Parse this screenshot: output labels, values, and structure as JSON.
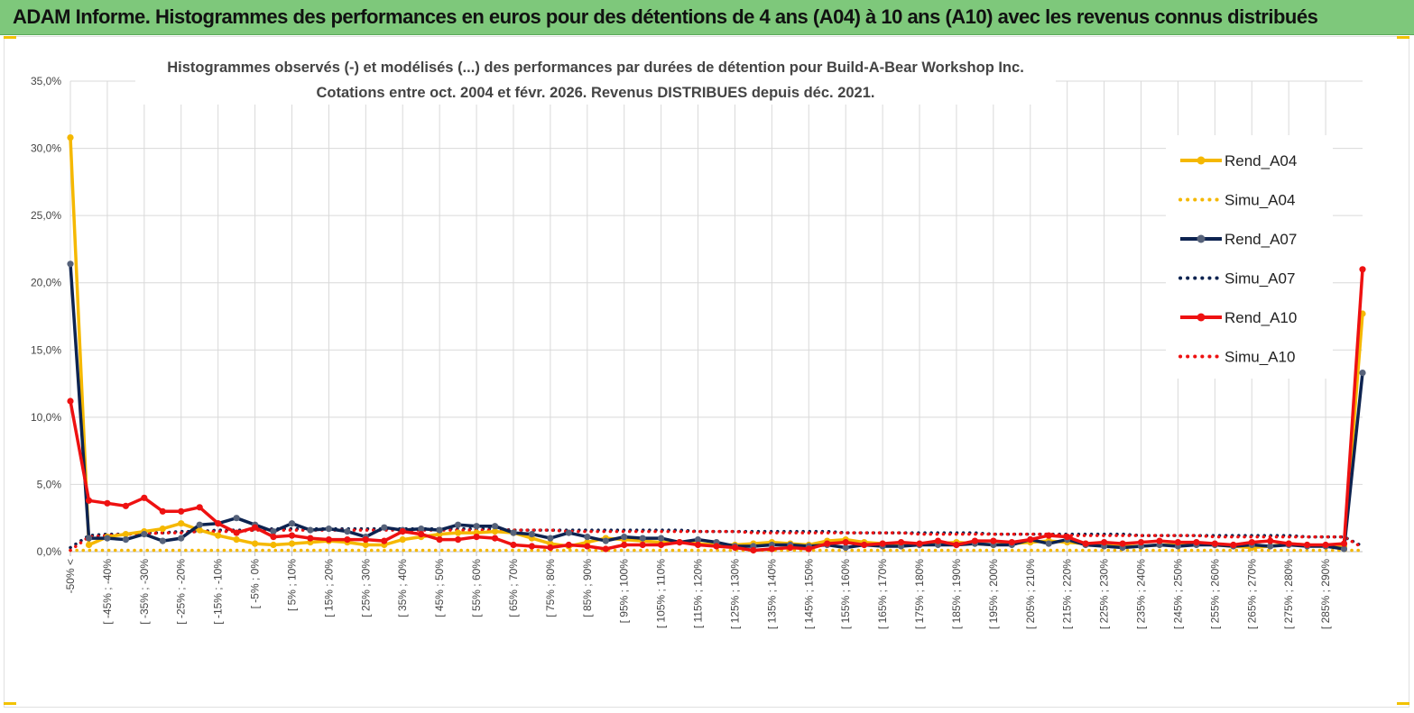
{
  "banner": {
    "title": "ADAM Informe. Histogrammes des performances en euros pour des détentions de 4 ans (A04) à 10 ans (A10) avec les revenus connus distribués"
  },
  "chart_data": {
    "type": "line",
    "title": "Histogrammes observés (-) et modélisés (...) des performances par durées de détention pour Build-A-Bear Workshop Inc.",
    "subtitle": "Cotations entre oct. 2004 et févr. 2026. Revenus DISTRIBUES depuis déc. 2021.",
    "xlabel": "",
    "ylabel": "",
    "ylim": [
      0,
      35
    ],
    "yticks": [
      "0,0%",
      "5,0%",
      "10,0%",
      "15,0%",
      "20,0%",
      "25,0%",
      "30,0%",
      "35,0%"
    ],
    "grid": true,
    "legend_position": "right",
    "categories": [
      "-50% <",
      "[ -50% ; -45%",
      "[ -45% ; -40%",
      "[ -40% ; -35%",
      "[ -35% ; -30%",
      "[ -30% ; -25%",
      "[ -25% ; -20%",
      "[ -20% ; -15%",
      "[ -15% ; -10%",
      "[ -10% ; -5%",
      "[ -5% ; 0%",
      "[ 0% ; 5%",
      "[ 5% ; 10%",
      "[ 10% ; 15%",
      "[ 15% ; 20%",
      "[ 20% ; 25%",
      "[ 25% ; 30%",
      "[ 30% ; 35%",
      "[ 35% ; 40%",
      "[ 40% ; 45%",
      "[ 45% ; 50%",
      "[ 50% ; 55%",
      "[ 55% ; 60%",
      "[ 60% ; 65%",
      "[ 65% ; 70%",
      "[ 70% ; 75%",
      "[ 75% ; 80%",
      "[ 80% ; 85%",
      "[ 85% ; 90%",
      "[ 90% ; 95%",
      "[ 95% ; 100%",
      "[ 100% ; 105%",
      "[ 105% ; 110%",
      "[ 110% ; 115%",
      "[ 115% ; 120%",
      "[ 120% ; 125%",
      "[ 125% ; 130%",
      "[ 130% ; 135%",
      "[ 135% ; 140%",
      "[ 140% ; 145%",
      "[ 145% ; 150%",
      "[ 150% ; 155%",
      "[ 155% ; 160%",
      "[ 160% ; 165%",
      "[ 165% ; 170%",
      "[ 170% ; 175%",
      "[ 175% ; 180%",
      "[ 180% ; 185%",
      "[ 185% ; 190%",
      "[ 190% ; 195%",
      "[ 195% ; 200%",
      "[ 200% ; 205%",
      "[ 205% ; 210%",
      "[ 210% ; 215%",
      "[ 215% ; 220%",
      "[ 220% ; 225%",
      "[ 225% ; 230%",
      "[ 230% ; 235%",
      "[ 235% ; 240%",
      "[ 240% ; 245%",
      "[ 245% ; 250%",
      "[ 250% ; 255%",
      "[ 255% ; 260%",
      "[ 260% ; 265%",
      "[ 265% ; 270%",
      "[ 270% ; 275%",
      "[ 275% ; 280%",
      "[ 280% ; 285%",
      "[ 285% ; 290%",
      "[ 290% ; 295%",
      "> 295%"
    ],
    "labeled_ticks": [
      "-50% <",
      "[ -45% ; -40%",
      "[ -35% ; -30%",
      "[ -25% ; -20%",
      "[ -15% ; -10%",
      "[ -5% ; 0%",
      "[ 5% ; 10%",
      "[ 15% ; 20%",
      "[ 25% ; 30%",
      "[ 35% ; 40%",
      "[ 45% ; 50%",
      "[ 55% ; 60%",
      "[ 65% ; 70%",
      "[ 75% ; 80%",
      "[ 85% ; 90%",
      "[ 95% ; 100%",
      "[ 105% ; 110%",
      "[ 115% ; 120%",
      "[ 125% ; 130%",
      "[ 135% ; 140%",
      "[ 145% ; 150%",
      "[ 155% ; 160%",
      "[ 165% ; 170%",
      "[ 175% ; 180%",
      "[ 185% ; 190%",
      "[ 195% ; 200%",
      "[ 205% ; 210%",
      "[ 215% ; 220%",
      "[ 225% ; 230%",
      "[ 235% ; 240%",
      "[ 245% ; 250%",
      "[ 255% ; 260%",
      "[ 265% ; 270%",
      "[ 275% ; 280%",
      "[ 285% ; 290%"
    ],
    "series": [
      {
        "name": "Rend_A04",
        "color": "#f5b800",
        "style": "solid",
        "markers": true,
        "values": [
          30.8,
          0.5,
          1.1,
          1.3,
          1.5,
          1.7,
          2.1,
          1.6,
          1.2,
          0.9,
          0.6,
          0.5,
          0.6,
          0.7,
          0.8,
          0.7,
          0.5,
          0.5,
          0.9,
          1.1,
          1.3,
          1.4,
          1.4,
          1.5,
          1.4,
          1.0,
          0.6,
          0.4,
          0.7,
          1.0,
          0.9,
          0.8,
          0.7,
          0.7,
          0.6,
          0.5,
          0.5,
          0.6,
          0.7,
          0.6,
          0.5,
          0.8,
          0.9,
          0.7,
          0.6,
          0.5,
          0.5,
          0.6,
          0.7,
          0.6,
          0.5,
          0.6,
          0.7,
          0.8,
          0.7,
          0.6,
          0.5,
          0.4,
          0.4,
          0.5,
          0.5,
          0.6,
          0.5,
          0.4,
          0.3,
          0.4,
          0.6,
          0.5,
          0.4,
          0.4,
          17.7
        ]
      },
      {
        "name": "Simu_A04",
        "color": "#f5b800",
        "style": "dotted",
        "markers": false,
        "values": [
          0.1,
          0.1,
          0.1,
          0.1,
          0.1,
          0.1,
          0.1,
          0.1,
          0.1,
          0.1,
          0.1,
          0.1,
          0.1,
          0.1,
          0.1,
          0.1,
          0.1,
          0.1,
          0.1,
          0.1,
          0.1,
          0.1,
          0.1,
          0.1,
          0.1,
          0.1,
          0.1,
          0.1,
          0.1,
          0.1,
          0.1,
          0.1,
          0.1,
          0.1,
          0.1,
          0.1,
          0.1,
          0.1,
          0.1,
          0.1,
          0.1,
          0.1,
          0.1,
          0.1,
          0.1,
          0.1,
          0.1,
          0.1,
          0.1,
          0.1,
          0.1,
          0.1,
          0.1,
          0.1,
          0.1,
          0.1,
          0.1,
          0.1,
          0.1,
          0.1,
          0.1,
          0.1,
          0.1,
          0.1,
          0.1,
          0.1,
          0.1,
          0.1,
          0.1,
          0.1,
          0.1
        ]
      },
      {
        "name": "Rend_A07",
        "color": "#0d2350",
        "style": "solid",
        "markers": true,
        "values": [
          21.4,
          1.0,
          1.0,
          0.9,
          1.3,
          0.8,
          1.0,
          2.0,
          2.1,
          2.5,
          2.0,
          1.5,
          2.1,
          1.6,
          1.7,
          1.5,
          1.1,
          1.8,
          1.6,
          1.7,
          1.6,
          2.0,
          1.9,
          1.9,
          1.4,
          1.3,
          1.0,
          1.4,
          1.1,
          0.8,
          1.1,
          1.0,
          1.0,
          0.7,
          0.9,
          0.7,
          0.4,
          0.4,
          0.5,
          0.5,
          0.4,
          0.5,
          0.3,
          0.5,
          0.4,
          0.4,
          0.5,
          0.5,
          0.5,
          0.6,
          0.5,
          0.5,
          0.9,
          0.6,
          0.9,
          0.5,
          0.4,
          0.3,
          0.4,
          0.5,
          0.4,
          0.5,
          0.5,
          0.4,
          0.5,
          0.4,
          0.5,
          0.4,
          0.4,
          0.2,
          13.3
        ]
      },
      {
        "name": "Simu_A07",
        "color": "#0d2350",
        "style": "dotted",
        "markers": false,
        "values": [
          0.3,
          1.2,
          1.3,
          1.3,
          1.4,
          1.4,
          1.5,
          1.5,
          1.6,
          1.6,
          1.6,
          1.7,
          1.7,
          1.7,
          1.7,
          1.7,
          1.7,
          1.7,
          1.7,
          1.7,
          1.7,
          1.7,
          1.7,
          1.7,
          1.6,
          1.6,
          1.6,
          1.6,
          1.6,
          1.6,
          1.6,
          1.6,
          1.6,
          1.6,
          1.5,
          1.5,
          1.5,
          1.5,
          1.5,
          1.5,
          1.5,
          1.5,
          1.4,
          1.4,
          1.4,
          1.4,
          1.4,
          1.4,
          1.4,
          1.4,
          1.3,
          1.3,
          1.3,
          1.3,
          1.3,
          1.3,
          1.3,
          1.3,
          1.2,
          1.2,
          1.2,
          1.2,
          1.2,
          1.2,
          1.2,
          1.2,
          1.2,
          1.1,
          1.1,
          1.1,
          0.4
        ]
      },
      {
        "name": "Rend_A10",
        "color": "#ee1111",
        "style": "solid",
        "markers": true,
        "values": [
          11.2,
          3.8,
          3.6,
          3.4,
          4.0,
          3.0,
          3.0,
          3.3,
          2.1,
          1.4,
          1.8,
          1.1,
          1.2,
          1.0,
          0.9,
          0.9,
          0.9,
          0.8,
          1.5,
          1.3,
          0.9,
          0.9,
          1.1,
          1.0,
          0.5,
          0.4,
          0.3,
          0.5,
          0.4,
          0.2,
          0.5,
          0.5,
          0.5,
          0.7,
          0.5,
          0.4,
          0.3,
          0.1,
          0.2,
          0.3,
          0.2,
          0.6,
          0.7,
          0.5,
          0.6,
          0.7,
          0.6,
          0.8,
          0.5,
          0.8,
          0.8,
          0.7,
          0.9,
          1.2,
          1.1,
          0.6,
          0.7,
          0.6,
          0.7,
          0.8,
          0.7,
          0.7,
          0.6,
          0.5,
          0.7,
          0.8,
          0.6,
          0.5,
          0.5,
          0.6,
          21.0
        ]
      },
      {
        "name": "Simu_A10",
        "color": "#ee1111",
        "style": "dotted",
        "markers": false,
        "values": [
          0.1,
          1.1,
          1.2,
          1.3,
          1.3,
          1.4,
          1.4,
          1.5,
          1.5,
          1.5,
          1.6,
          1.6,
          1.6,
          1.6,
          1.6,
          1.6,
          1.6,
          1.6,
          1.6,
          1.6,
          1.6,
          1.6,
          1.6,
          1.6,
          1.6,
          1.6,
          1.6,
          1.5,
          1.5,
          1.5,
          1.5,
          1.5,
          1.5,
          1.5,
          1.5,
          1.5,
          1.5,
          1.4,
          1.4,
          1.4,
          1.4,
          1.4,
          1.4,
          1.4,
          1.4,
          1.4,
          1.3,
          1.3,
          1.3,
          1.3,
          1.3,
          1.3,
          1.3,
          1.3,
          1.2,
          1.2,
          1.2,
          1.2,
          1.2,
          1.2,
          1.2,
          1.2,
          1.1,
          1.1,
          1.1,
          1.1,
          1.1,
          1.1,
          1.1,
          1.1,
          0.3
        ]
      }
    ]
  }
}
